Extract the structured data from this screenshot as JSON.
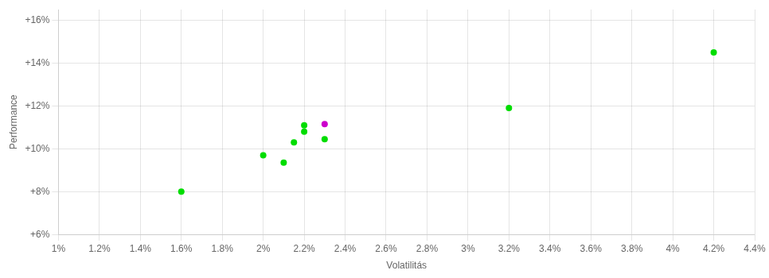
{
  "chart_data": {
    "type": "scatter",
    "xlabel": "Volatilitás",
    "ylabel": "Performance",
    "xlim": [
      0.01,
      0.044
    ],
    "ylim": [
      0.06,
      0.165
    ],
    "xticks": [
      {
        "value": 0.01,
        "label": "1%"
      },
      {
        "value": 0.012,
        "label": "1.2%"
      },
      {
        "value": 0.014,
        "label": "1.4%"
      },
      {
        "value": 0.016,
        "label": "1.6%"
      },
      {
        "value": 0.018,
        "label": "1.8%"
      },
      {
        "value": 0.02,
        "label": "2%"
      },
      {
        "value": 0.022,
        "label": "2.2%"
      },
      {
        "value": 0.024,
        "label": "2.4%"
      },
      {
        "value": 0.026,
        "label": "2.6%"
      },
      {
        "value": 0.028,
        "label": "2.8%"
      },
      {
        "value": 0.03,
        "label": "3%"
      },
      {
        "value": 0.032,
        "label": "3.2%"
      },
      {
        "value": 0.034,
        "label": "3.4%"
      },
      {
        "value": 0.036,
        "label": "3.6%"
      },
      {
        "value": 0.038,
        "label": "3.8%"
      },
      {
        "value": 0.04,
        "label": "4%"
      },
      {
        "value": 0.042,
        "label": "4.2%"
      },
      {
        "value": 0.044,
        "label": "4.4%"
      }
    ],
    "yticks": [
      {
        "value": 0.06,
        "label": "+6%"
      },
      {
        "value": 0.08,
        "label": "+8%"
      },
      {
        "value": 0.1,
        "label": "+10%"
      },
      {
        "value": 0.12,
        "label": "+12%"
      },
      {
        "value": 0.14,
        "label": "+14%"
      },
      {
        "value": 0.16,
        "label": "+16%"
      }
    ],
    "grid": true,
    "series": [
      {
        "color": "#00dd00",
        "x": [
          0.016,
          0.02,
          0.021,
          0.0215,
          0.022,
          0.022,
          0.023,
          0.032,
          0.042
        ],
        "values": [
          0.08,
          0.097,
          0.0935,
          0.103,
          0.111,
          0.108,
          0.1045,
          0.119,
          0.145
        ]
      },
      {
        "color": "#cc00cc",
        "x": [
          0.023
        ],
        "values": [
          0.1115
        ]
      }
    ]
  }
}
